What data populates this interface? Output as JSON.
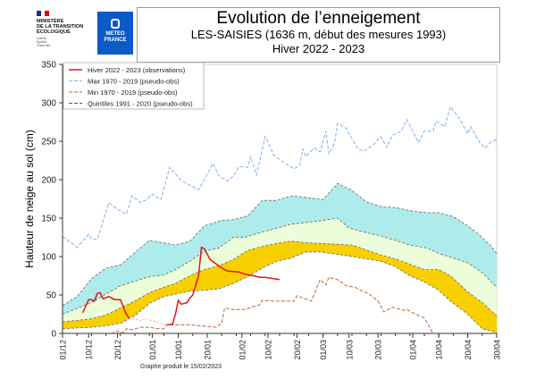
{
  "header": {
    "ministry": {
      "name": "MINISTÈRE\nDE LA TRANSITION\nÉCOLOGIQUE",
      "motto": "Liberté\nÉgalité\nFraternité",
      "flag_colors": [
        "#1b2b8f",
        "#ffffff",
        "#e1000f"
      ]
    },
    "meteo_france": {
      "name": "METEO\nFRANCE",
      "color": "#0a5ac8"
    },
    "title": "Evolution de l’enneigement",
    "subtitle": "LES-SAISIES (1636 m, début des mesures 1993)",
    "season": "Hiver 2022 - 2023"
  },
  "footer": "Graphe produit le 15/02/2023",
  "chart_data": {
    "type": "line",
    "ylabel": "Hauteur de neige au sol (cm)",
    "xlabel": "",
    "ylim": [
      0,
      350
    ],
    "yticks": [
      0,
      50,
      100,
      150,
      200,
      250,
      300,
      350
    ],
    "xlim": [
      "01/12",
      "30/04"
    ],
    "xticks": [
      "01/12",
      "10/12",
      "20/12",
      "01/01",
      "10/01",
      "20/01",
      "01/02",
      "10/02",
      "20/02",
      "01/03",
      "10/03",
      "20/03",
      "01/04",
      "10/04",
      "20/04",
      "30/04"
    ],
    "grid": false,
    "legend_position": "top-left",
    "legend": [
      {
        "label": "Hiver 2022 - 2023 (observations)",
        "color": "#e8101a",
        "style": "solid"
      },
      {
        "label": "Max 1970 - 2019 (pseudo-obs)",
        "color": "#7fb0ee",
        "style": "dashed"
      },
      {
        "label": "Min 1970 - 2019 (pseudo-obs)",
        "color": "#c0623a",
        "style": "dashed"
      },
      {
        "label": "Quintiles 1991 - 2020 (pseudo-obs)",
        "color": "#555555",
        "style": "dashed"
      }
    ],
    "band_colors": {
      "q20_q40": "#f8d000",
      "q40_q60": "#ebfdd9",
      "q60_q80": "#aeeceb"
    },
    "quintiles": {
      "q80": [
        [
          "01/12",
          36
        ],
        [
          "06/12",
          48
        ],
        [
          "11/12",
          71
        ],
        [
          "16/12",
          85
        ],
        [
          "21/12",
          89
        ],
        [
          "26/12",
          105
        ],
        [
          "31/12",
          121
        ],
        [
          "09/01",
          115
        ],
        [
          "14/01",
          120
        ],
        [
          "19/01",
          140
        ],
        [
          "25/01",
          147
        ],
        [
          "29/01",
          148
        ],
        [
          "03/02",
          153
        ],
        [
          "08/02",
          173
        ],
        [
          "13/02",
          173
        ],
        [
          "18/02",
          179
        ],
        [
          "23/02",
          177
        ],
        [
          "01/03",
          174
        ],
        [
          "06/03",
          195
        ],
        [
          "11/03",
          186
        ],
        [
          "16/03",
          171
        ],
        [
          "21/03",
          165
        ],
        [
          "27/03",
          163
        ],
        [
          "01/04",
          159
        ],
        [
          "06/04",
          157
        ],
        [
          "10/04",
          157
        ],
        [
          "15/04",
          152
        ],
        [
          "20/04",
          140
        ],
        [
          "24/04",
          128
        ],
        [
          "28/04",
          114
        ],
        [
          "30/04",
          104
        ]
      ],
      "q60": [
        [
          "01/12",
          25
        ],
        [
          "11/12",
          40
        ],
        [
          "21/12",
          62
        ],
        [
          "31/12",
          74
        ],
        [
          "05/01",
          76
        ],
        [
          "09/01",
          83
        ],
        [
          "14/01",
          94
        ],
        [
          "19/01",
          107
        ],
        [
          "24/01",
          111
        ],
        [
          "29/01",
          125
        ],
        [
          "02/02",
          125
        ],
        [
          "08/02",
          132
        ],
        [
          "18/02",
          142
        ],
        [
          "01/03",
          147
        ],
        [
          "06/03",
          150
        ],
        [
          "10/03",
          137
        ],
        [
          "16/03",
          131
        ],
        [
          "21/03",
          127
        ],
        [
          "31/03",
          115
        ],
        [
          "06/04",
          111
        ],
        [
          "10/04",
          104
        ],
        [
          "20/04",
          92
        ],
        [
          "25/04",
          79
        ],
        [
          "30/04",
          60
        ]
      ],
      "q40": [
        [
          "01/12",
          15
        ],
        [
          "11/12",
          19
        ],
        [
          "16/12",
          24
        ],
        [
          "21/12",
          33
        ],
        [
          "26/12",
          42
        ],
        [
          "31/12",
          53
        ],
        [
          "05/01",
          60
        ],
        [
          "09/01",
          65
        ],
        [
          "14/01",
          75
        ],
        [
          "19/01",
          83
        ],
        [
          "24/01",
          88
        ],
        [
          "29/01",
          96
        ],
        [
          "03/02",
          108
        ],
        [
          "08/02",
          113
        ],
        [
          "13/02",
          117
        ],
        [
          "18/02",
          120
        ],
        [
          "23/02",
          118
        ],
        [
          "28/02",
          117
        ],
        [
          "11/03",
          115
        ],
        [
          "21/03",
          102
        ],
        [
          "26/03",
          97
        ],
        [
          "31/03",
          90
        ],
        [
          "05/04",
          83
        ],
        [
          "10/04",
          83
        ],
        [
          "14/04",
          75
        ],
        [
          "20/04",
          54
        ],
        [
          "25/04",
          40
        ],
        [
          "30/04",
          23
        ]
      ],
      "q20": [
        [
          "01/12",
          6
        ],
        [
          "11/12",
          8
        ],
        [
          "16/12",
          10
        ],
        [
          "21/12",
          13
        ],
        [
          "26/12",
          23
        ],
        [
          "31/12",
          39
        ],
        [
          "05/01",
          48
        ],
        [
          "09/01",
          51
        ],
        [
          "14/01",
          55
        ],
        [
          "19/01",
          56
        ],
        [
          "24/01",
          58
        ],
        [
          "29/01",
          65
        ],
        [
          "03/02",
          74
        ],
        [
          "08/02",
          85
        ],
        [
          "13/02",
          94
        ],
        [
          "18/02",
          98
        ],
        [
          "23/02",
          106
        ],
        [
          "28/02",
          106
        ],
        [
          "11/03",
          100
        ],
        [
          "21/03",
          94
        ],
        [
          "26/03",
          87
        ],
        [
          "31/03",
          75
        ],
        [
          "05/04",
          67
        ],
        [
          "10/04",
          56
        ],
        [
          "14/04",
          42
        ],
        [
          "20/04",
          25
        ],
        [
          "25/04",
          6
        ],
        [
          "30/04",
          1
        ]
      ]
    },
    "series": [
      {
        "name": "Max 1970 - 2019 (pseudo-obs)",
        "color": "#7fb0ee",
        "points": [
          [
            "01/12",
            126
          ],
          [
            "06/12",
            112
          ],
          [
            "10/12",
            129
          ],
          [
            "11/12",
            123
          ],
          [
            "13/12",
            122
          ],
          [
            "17/12",
            170
          ],
          [
            "19/12",
            164
          ],
          [
            "23/12",
            155
          ],
          [
            "25/12",
            179
          ],
          [
            "28/12",
            170
          ],
          [
            "30/12",
            174
          ],
          [
            "01/01",
            181
          ],
          [
            "04/01",
            174
          ],
          [
            "07/01",
            216
          ],
          [
            "11/01",
            199
          ],
          [
            "17/01",
            187
          ],
          [
            "20/01",
            207
          ],
          [
            "22/01",
            221
          ],
          [
            "24/01",
            205
          ],
          [
            "27/01",
            198
          ],
          [
            "29/01",
            205
          ],
          [
            "31/01",
            217
          ],
          [
            "03/02",
            216
          ],
          [
            "04/02",
            230
          ],
          [
            "06/02",
            206
          ],
          [
            "09/02",
            256
          ],
          [
            "12/02",
            232
          ],
          [
            "16/02",
            221
          ],
          [
            "19/02",
            214
          ],
          [
            "21/02",
            219
          ],
          [
            "22/02",
            240
          ],
          [
            "23/02",
            230
          ],
          [
            "26/02",
            241
          ],
          [
            "28/02",
            236
          ],
          [
            "02/03",
            263
          ],
          [
            "03/03",
            234
          ],
          [
            "05/03",
            248
          ],
          [
            "06/03",
            273
          ],
          [
            "09/03",
            267
          ],
          [
            "13/03",
            240
          ],
          [
            "15/03",
            237
          ],
          [
            "18/03",
            244
          ],
          [
            "21/03",
            256
          ],
          [
            "23/03",
            242
          ],
          [
            "25/03",
            258
          ],
          [
            "28/03",
            263
          ],
          [
            "30/03",
            278
          ],
          [
            "03/04",
            248
          ],
          [
            "05/04",
            263
          ],
          [
            "08/04",
            263
          ],
          [
            "09/04",
            276
          ],
          [
            "12/04",
            269
          ],
          [
            "14/04",
            295
          ],
          [
            "17/04",
            280
          ],
          [
            "20/04",
            260
          ],
          [
            "21/04",
            269
          ],
          [
            "24/04",
            249
          ],
          [
            "26/04",
            241
          ],
          [
            "28/04",
            249
          ],
          [
            "30/04",
            252
          ]
        ]
      },
      {
        "name": "Min 1970 - 2019 (pseudo-obs)",
        "color": "#c0623a",
        "points": [
          [
            "01/12",
            0
          ],
          [
            "18/12",
            0
          ],
          [
            "20/12",
            3
          ],
          [
            "22/12",
            1
          ],
          [
            "23/12",
            6
          ],
          [
            "25/12",
            5
          ],
          [
            "28/12",
            8
          ],
          [
            "31/12",
            8
          ],
          [
            "03/01",
            6
          ],
          [
            "05/01",
            6
          ],
          [
            "06/01",
            11
          ],
          [
            "14/01",
            11
          ],
          [
            "23/01",
            8
          ],
          [
            "25/01",
            13
          ],
          [
            "26/01",
            33
          ],
          [
            "29/01",
            31
          ],
          [
            "02/02",
            31
          ],
          [
            "05/02",
            35
          ],
          [
            "07/02",
            37
          ],
          [
            "08/02",
            43
          ],
          [
            "12/02",
            42
          ],
          [
            "19/02",
            42
          ],
          [
            "20/02",
            49
          ],
          [
            "25/02",
            42
          ],
          [
            "28/02",
            70
          ],
          [
            "02/03",
            63
          ],
          [
            "03/03",
            73
          ],
          [
            "06/03",
            70
          ],
          [
            "09/03",
            62
          ],
          [
            "12/03",
            60
          ],
          [
            "17/03",
            51
          ],
          [
            "20/03",
            42
          ],
          [
            "22/03",
            28
          ],
          [
            "25/03",
            34
          ],
          [
            "29/03",
            30
          ],
          [
            "30/03",
            31
          ],
          [
            "01/04",
            27
          ],
          [
            "05/04",
            20
          ],
          [
            "08/04",
            0
          ],
          [
            "30/04",
            0
          ]
        ]
      },
      {
        "name": "Hiver 2022 - 2023 (observations)",
        "color": "#e8101a",
        "segments": [
          [
            [
              "08/12",
              27
            ],
            [
              "10/12",
              44
            ],
            [
              "11/12",
              44
            ],
            [
              "12/12",
              42
            ],
            [
              "13/12",
              52
            ],
            [
              "14/12",
              53
            ],
            [
              "15/12",
              45
            ],
            [
              "17/12",
              48
            ],
            [
              "19/12",
              44
            ],
            [
              "21/12",
              44
            ],
            [
              "23/12",
              25
            ],
            [
              "24/12",
              20
            ]
          ],
          [
            [
              "06/01",
              11
            ],
            [
              "08/01",
              12
            ],
            [
              "09/01",
              25
            ],
            [
              "10/01",
              43
            ],
            [
              "11/01",
              38
            ],
            [
              "13/01",
              40
            ],
            [
              "14/01",
              46
            ],
            [
              "15/01",
              50
            ],
            [
              "17/01",
              75
            ],
            [
              "18/01",
              112
            ],
            [
              "19/01",
              110
            ],
            [
              "21/01",
              96
            ],
            [
              "25/01",
              85
            ],
            [
              "27/01",
              81
            ],
            [
              "31/01",
              80
            ],
            [
              "02/02",
              77
            ],
            [
              "05/02",
              75
            ],
            [
              "07/02",
              73
            ],
            [
              "09/02",
              73
            ],
            [
              "14/02",
              70
            ]
          ]
        ],
        "gap": [
          [
            "24/12",
            20
          ],
          [
            "28/12",
            17
          ],
          [
            "30/12",
            19
          ],
          [
            "04/01",
            13
          ],
          [
            "06/01",
            11
          ]
        ]
      }
    ]
  }
}
